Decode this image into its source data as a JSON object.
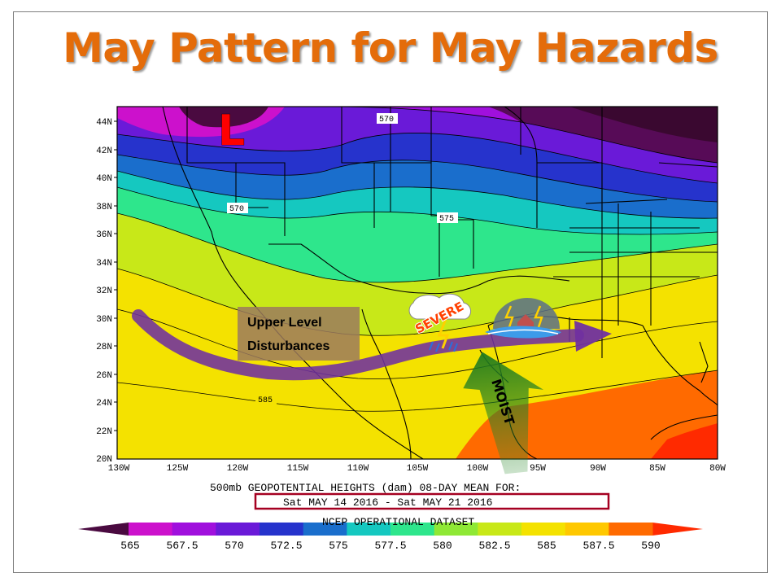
{
  "slide": {
    "title": "May Pattern for May Hazards"
  },
  "map": {
    "lat_labels": [
      "44N",
      "42N",
      "40N",
      "38N",
      "36N",
      "34N",
      "32N",
      "30N",
      "28N",
      "26N",
      "24N",
      "22N",
      "20N"
    ],
    "lon_labels": [
      "130W",
      "125W",
      "120W",
      "115W",
      "110W",
      "105W",
      "100W",
      "95W",
      "90W",
      "85W",
      "80W"
    ],
    "contour_labels": [
      "570",
      "570",
      "575",
      "585"
    ],
    "low_marker": "L",
    "severe_label": "SEVERE",
    "disturbance_label_line1": "Upper Level",
    "disturbance_label_line2": "Disturbances",
    "moist_label": "MOIST",
    "caption_line1": "500mb GEOPOTENTIAL HEIGHTS (dam)  08-DAY MEAN FOR:",
    "caption_line2": "Sat MAY 14 2016 - Sat MAY 21 2016",
    "caption_line3": "NCEP OPERATIONAL DATASET",
    "highlight_color": "#a50021"
  },
  "colorbar": {
    "labels": [
      "565",
      "567.5",
      "570",
      "572.5",
      "575",
      "577.5",
      "580",
      "582.5",
      "585",
      "587.5",
      "590"
    ],
    "colors": [
      "#4a0a40",
      "#cc11cc",
      "#a010dd",
      "#6a1ad8",
      "#2633cc",
      "#1a6ecc",
      "#15c8c0",
      "#2ee68c",
      "#8fe835",
      "#c8e818",
      "#f4e200",
      "#ffc800",
      "#ff6a00",
      "#ff2a00"
    ]
  }
}
